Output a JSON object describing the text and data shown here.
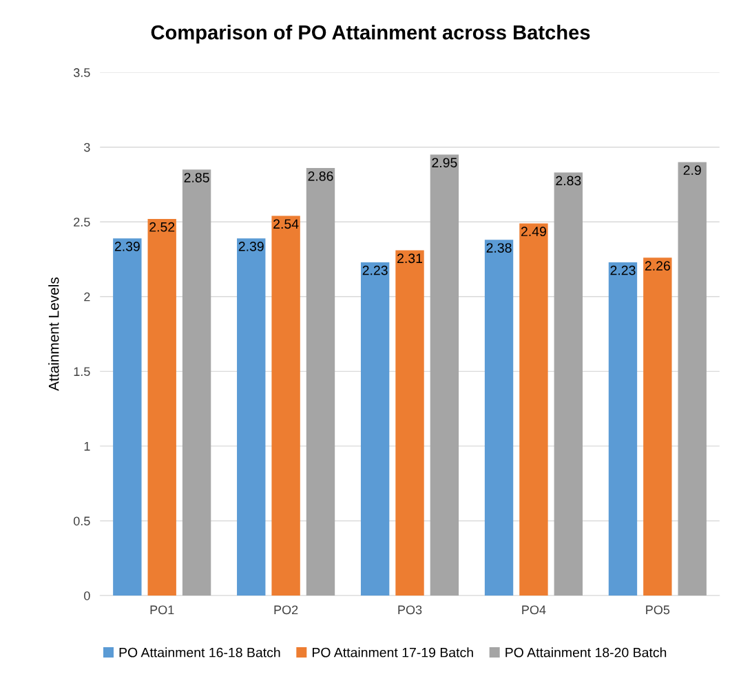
{
  "chart_data": {
    "type": "bar",
    "title": "Comparison of PO Attainment across Batches",
    "ylabel": "Attainment Levels",
    "categories": [
      "PO1",
      "PO2",
      "PO3",
      "PO4",
      "PO5"
    ],
    "series": [
      {
        "name": "PO Attainment 16-18 Batch",
        "color": "#5b9bd5",
        "values": [
          2.39,
          2.39,
          2.23,
          2.38,
          2.23
        ]
      },
      {
        "name": "PO Attainment 17-19 Batch",
        "color": "#ed7d31",
        "values": [
          2.52,
          2.54,
          2.31,
          2.49,
          2.26
        ]
      },
      {
        "name": "PO Attainment 18-20 Batch",
        "color": "#a5a5a5",
        "values": [
          2.85,
          2.86,
          2.95,
          2.83,
          2.9
        ]
      }
    ],
    "ylim": [
      0,
      3.5
    ],
    "yticks": [
      0,
      0.5,
      1,
      1.5,
      2,
      2.5,
      3,
      3.5
    ],
    "grid": "y",
    "legend": "bottom",
    "data_labels": true
  }
}
